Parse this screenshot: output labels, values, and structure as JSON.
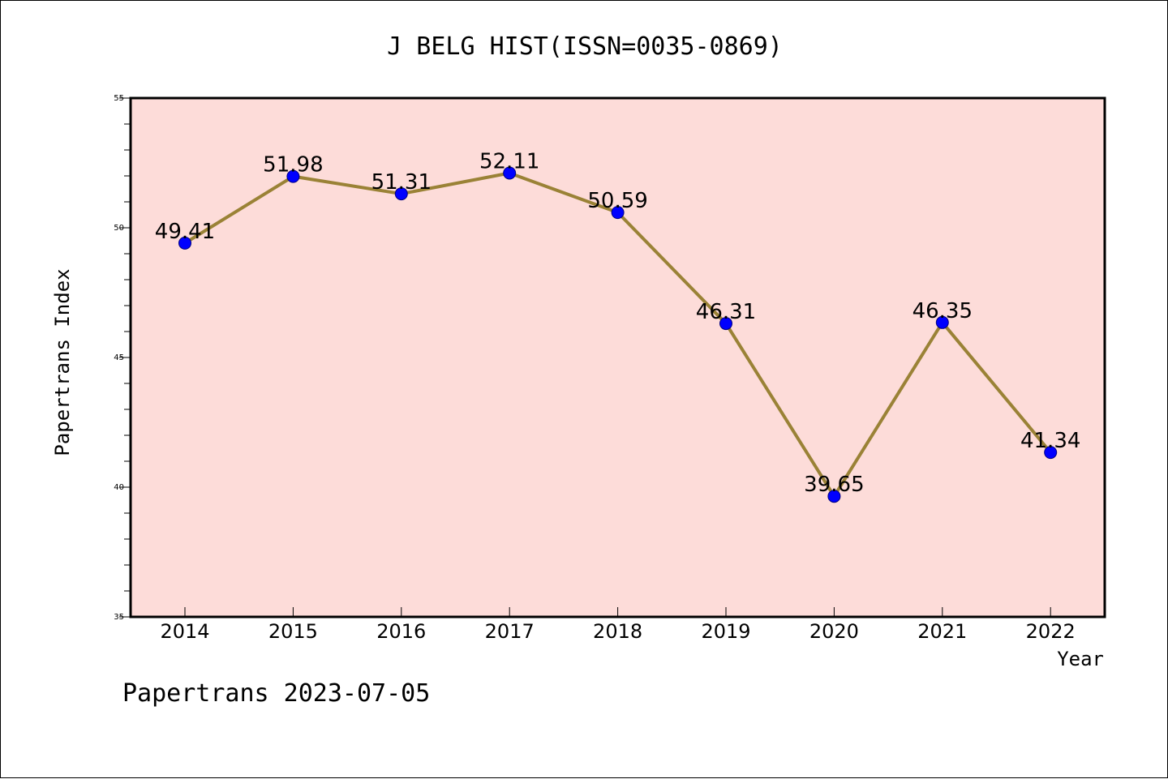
{
  "chart_data": {
    "type": "line",
    "title": "J BELG HIST(ISSN=0035-0869)",
    "xlabel": "Year",
    "ylabel": "Papertrans Index",
    "footer": "Papertrans 2023-07-05",
    "categories": [
      "2014",
      "2015",
      "2016",
      "2017",
      "2018",
      "2019",
      "2020",
      "2021",
      "2022"
    ],
    "values": [
      49.41,
      51.98,
      51.31,
      52.11,
      50.59,
      46.31,
      39.65,
      46.35,
      41.34
    ],
    "data_labels": [
      "49.41",
      "51.98",
      "51.31",
      "52.11",
      "50.59",
      "46.31",
      "39.65",
      "46.35",
      "41.34"
    ],
    "ylim": [
      35,
      55
    ],
    "yticks": [
      "35",
      "40",
      "45",
      "50",
      "55"
    ],
    "grid": false,
    "colors": {
      "plot_background": "#fddcd9",
      "line": "#9a8236",
      "marker": "#0000ff"
    }
  }
}
